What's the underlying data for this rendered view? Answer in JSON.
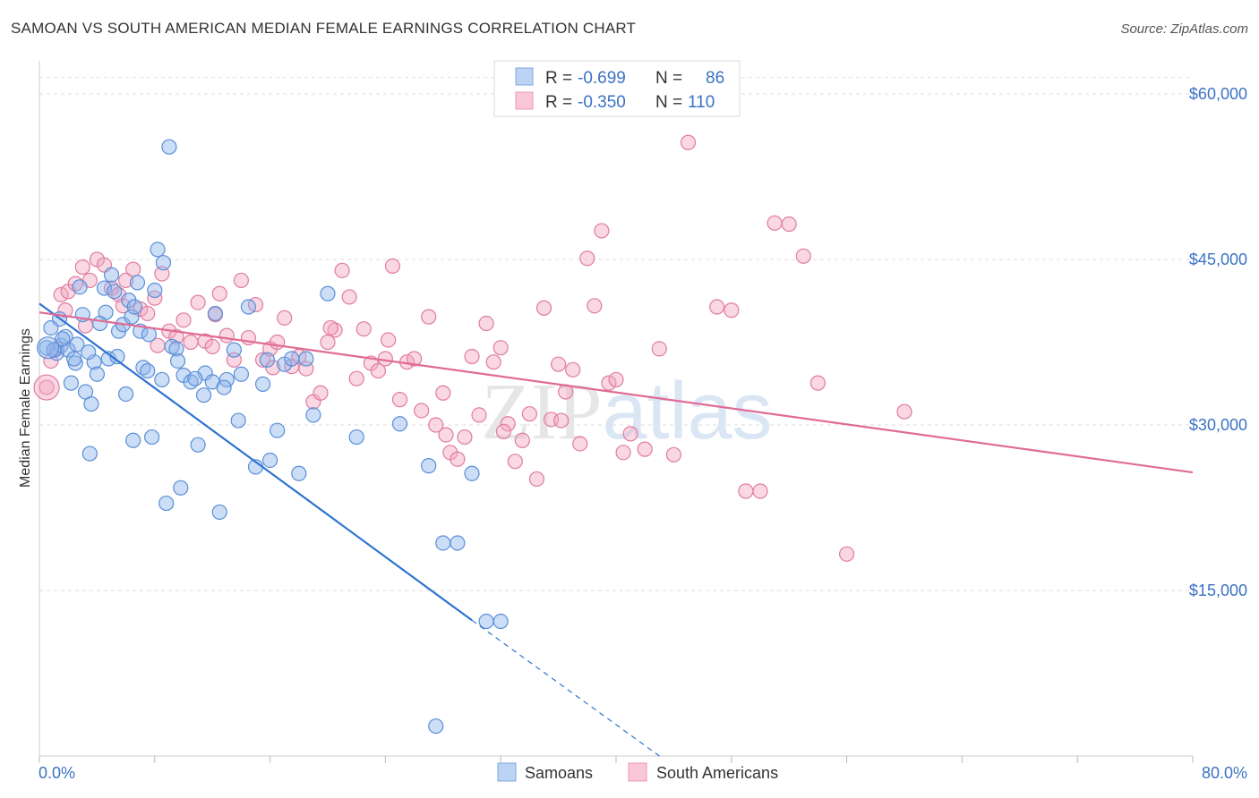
{
  "chart_data": {
    "type": "scatter",
    "title": "SAMOAN VS SOUTH AMERICAN MEDIAN FEMALE EARNINGS CORRELATION CHART",
    "source": "Source: ZipAtlas.com",
    "xlabel": "",
    "ylabel": "Median Female Earnings",
    "xlim": [
      0,
      80
    ],
    "ylim": [
      0,
      63000
    ],
    "x_tick_labels": [
      "0.0%",
      "80.0%"
    ],
    "y_ticks": [
      15000,
      30000,
      45000,
      60000
    ],
    "y_tick_labels": [
      "$15,000",
      "$30,000",
      "$45,000",
      "$60,000"
    ],
    "watermark": "ZIPatlas",
    "legend": [
      {
        "name": "Samoans",
        "r_label": "R =",
        "r": "-0.699",
        "n_label": "N =",
        "n": "86",
        "color": "#8fb4ea"
      },
      {
        "name": "South Americans",
        "r_label": "R =",
        "r": "-0.350",
        "n_label": "N =",
        "n": "110",
        "color": "#f2a7c0"
      }
    ],
    "series": [
      {
        "name": "Samoans",
        "color": "#8fb4ea",
        "stroke": "#5a8fd8",
        "trend": {
          "x0": 0,
          "y0": 41000,
          "x1": 30,
          "y1": 12300,
          "dash_to_x": 43,
          "dash_to_y": 0,
          "color": "#2f74d0"
        },
        "points": [
          [
            0.5,
            37000
          ],
          [
            0.8,
            38800
          ],
          [
            1.2,
            36500
          ],
          [
            1.5,
            37200
          ],
          [
            1.8,
            38000
          ],
          [
            2.0,
            36800
          ],
          [
            2.2,
            33800
          ],
          [
            2.5,
            35600
          ],
          [
            2.8,
            42500
          ],
          [
            3.0,
            40000
          ],
          [
            3.2,
            33000
          ],
          [
            3.5,
            27400
          ],
          [
            3.8,
            35700
          ],
          [
            4.0,
            34600
          ],
          [
            4.2,
            39200
          ],
          [
            4.5,
            42400
          ],
          [
            4.8,
            36000
          ],
          [
            5.0,
            43600
          ],
          [
            5.2,
            42100
          ],
          [
            5.5,
            38500
          ],
          [
            5.8,
            39100
          ],
          [
            6.0,
            32800
          ],
          [
            6.2,
            41300
          ],
          [
            6.5,
            28600
          ],
          [
            6.8,
            42900
          ],
          [
            7.0,
            38500
          ],
          [
            7.2,
            35200
          ],
          [
            7.5,
            34900
          ],
          [
            7.8,
            28900
          ],
          [
            8.0,
            42200
          ],
          [
            8.2,
            45900
          ],
          [
            8.5,
            34100
          ],
          [
            8.8,
            22900
          ],
          [
            9.0,
            55200
          ],
          [
            9.2,
            37100
          ],
          [
            9.5,
            36900
          ],
          [
            9.8,
            24300
          ],
          [
            10.0,
            34500
          ],
          [
            10.5,
            33900
          ],
          [
            11.0,
            28200
          ],
          [
            11.5,
            34700
          ],
          [
            12.0,
            33900
          ],
          [
            12.2,
            40100
          ],
          [
            12.5,
            22100
          ],
          [
            13.0,
            34100
          ],
          [
            13.5,
            36800
          ],
          [
            14.0,
            34600
          ],
          [
            14.5,
            40700
          ],
          [
            15.0,
            26200
          ],
          [
            15.5,
            33700
          ],
          [
            16.0,
            26800
          ],
          [
            16.5,
            29500
          ],
          [
            17.0,
            35500
          ],
          [
            17.5,
            36000
          ],
          [
            18.0,
            25600
          ],
          [
            18.5,
            36000
          ],
          [
            19.0,
            30900
          ],
          [
            20.0,
            41900
          ],
          [
            22.0,
            28900
          ],
          [
            25.0,
            30100
          ],
          [
            27.0,
            26300
          ],
          [
            28.0,
            19300
          ],
          [
            29.0,
            19300
          ],
          [
            30.0,
            25600
          ],
          [
            31.0,
            12200
          ],
          [
            32.0,
            12200
          ],
          [
            27.5,
            2700
          ],
          [
            1.0,
            36800
          ],
          [
            1.4,
            39600
          ],
          [
            2.6,
            37300
          ],
          [
            3.4,
            36600
          ],
          [
            4.6,
            40200
          ],
          [
            6.4,
            39800
          ],
          [
            7.6,
            38200
          ],
          [
            9.6,
            35800
          ],
          [
            11.4,
            32700
          ],
          [
            13.8,
            30400
          ],
          [
            1.6,
            37800
          ],
          [
            2.4,
            36000
          ],
          [
            3.6,
            31900
          ],
          [
            5.4,
            36200
          ],
          [
            6.6,
            40700
          ],
          [
            8.6,
            44700
          ],
          [
            10.8,
            34200
          ],
          [
            12.8,
            33400
          ],
          [
            15.8,
            35900
          ]
        ]
      },
      {
        "name": "South Americans",
        "color": "#f2a7c0",
        "stroke": "#e07ca0",
        "trend": {
          "x0": 0,
          "y0": 40200,
          "x1": 80,
          "y1": 25700,
          "color": "#e06b95"
        },
        "points": [
          [
            0.5,
            33400
          ],
          [
            0.8,
            35800
          ],
          [
            1.2,
            36900
          ],
          [
            1.5,
            41800
          ],
          [
            1.8,
            40400
          ],
          [
            2.0,
            42100
          ],
          [
            2.5,
            42800
          ],
          [
            3.0,
            44300
          ],
          [
            3.5,
            43100
          ],
          [
            4.0,
            45000
          ],
          [
            4.5,
            44500
          ],
          [
            5.0,
            42400
          ],
          [
            5.5,
            41800
          ],
          [
            6.0,
            43100
          ],
          [
            6.5,
            44100
          ],
          [
            7.0,
            40500
          ],
          [
            7.5,
            40100
          ],
          [
            8.0,
            41500
          ],
          [
            8.5,
            43700
          ],
          [
            9.0,
            38500
          ],
          [
            9.5,
            38000
          ],
          [
            10.0,
            39500
          ],
          [
            10.5,
            37500
          ],
          [
            11.0,
            41100
          ],
          [
            11.5,
            37600
          ],
          [
            12.0,
            37100
          ],
          [
            12.5,
            41900
          ],
          [
            13.0,
            38100
          ],
          [
            13.5,
            35900
          ],
          [
            14.0,
            43100
          ],
          [
            14.5,
            37900
          ],
          [
            15.0,
            40900
          ],
          [
            15.5,
            35900
          ],
          [
            16.0,
            36900
          ],
          [
            16.5,
            37500
          ],
          [
            17.0,
            39700
          ],
          [
            17.5,
            35300
          ],
          [
            18.0,
            36200
          ],
          [
            18.5,
            35100
          ],
          [
            19.0,
            32100
          ],
          [
            19.5,
            32900
          ],
          [
            20.0,
            37500
          ],
          [
            20.5,
            38600
          ],
          [
            21.0,
            44000
          ],
          [
            21.5,
            41600
          ],
          [
            22.0,
            34200
          ],
          [
            22.5,
            38700
          ],
          [
            23.0,
            35600
          ],
          [
            23.5,
            34900
          ],
          [
            24.0,
            36000
          ],
          [
            24.5,
            44400
          ],
          [
            25.0,
            32300
          ],
          [
            25.5,
            35700
          ],
          [
            26.0,
            36000
          ],
          [
            26.5,
            31300
          ],
          [
            27.0,
            39800
          ],
          [
            27.5,
            30000
          ],
          [
            28.0,
            32900
          ],
          [
            28.5,
            27500
          ],
          [
            29.0,
            26900
          ],
          [
            29.5,
            28900
          ],
          [
            30.0,
            36200
          ],
          [
            30.5,
            30900
          ],
          [
            31.0,
            39200
          ],
          [
            31.5,
            35700
          ],
          [
            32.0,
            37000
          ],
          [
            32.5,
            30100
          ],
          [
            33.0,
            26700
          ],
          [
            33.5,
            28600
          ],
          [
            34.0,
            31000
          ],
          [
            34.5,
            25100
          ],
          [
            35.0,
            40600
          ],
          [
            35.5,
            30500
          ],
          [
            36.0,
            35500
          ],
          [
            36.5,
            33000
          ],
          [
            37.0,
            35000
          ],
          [
            37.5,
            28300
          ],
          [
            38.0,
            45100
          ],
          [
            38.5,
            40800
          ],
          [
            39.0,
            47600
          ],
          [
            39.5,
            33800
          ],
          [
            40.0,
            34100
          ],
          [
            40.5,
            27500
          ],
          [
            41.0,
            29200
          ],
          [
            42.0,
            27800
          ],
          [
            43.0,
            36900
          ],
          [
            44.0,
            27300
          ],
          [
            45.0,
            55600
          ],
          [
            47.0,
            40700
          ],
          [
            48.0,
            40400
          ],
          [
            49.0,
            24000
          ],
          [
            50.0,
            24000
          ],
          [
            51.0,
            48300
          ],
          [
            52.0,
            48200
          ],
          [
            53.0,
            45300
          ],
          [
            54.0,
            33800
          ],
          [
            56.0,
            18300
          ],
          [
            60.0,
            31200
          ],
          [
            3.2,
            39000
          ],
          [
            5.8,
            40800
          ],
          [
            8.2,
            37200
          ],
          [
            12.2,
            40000
          ],
          [
            16.2,
            35200
          ],
          [
            20.2,
            38800
          ],
          [
            24.2,
            37700
          ],
          [
            28.2,
            29100
          ],
          [
            32.2,
            29400
          ],
          [
            36.2,
            30400
          ]
        ]
      }
    ]
  }
}
